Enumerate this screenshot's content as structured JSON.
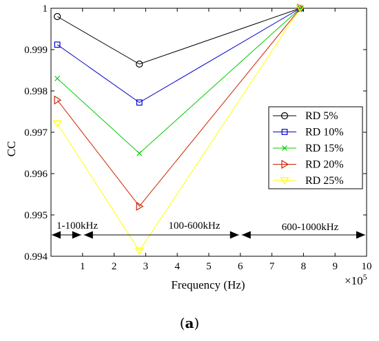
{
  "chart_data": {
    "type": "line",
    "xlabel": "Frequency (Hz)",
    "ylabel": "CC",
    "x_multiplier_label": "×10",
    "x_multiplier_exp": "5",
    "xlim": [
      0,
      1000000
    ],
    "ylim": [
      0.994,
      1
    ],
    "x_ticks": [
      1,
      2,
      3,
      4,
      5,
      6,
      7,
      8,
      9,
      10
    ],
    "x_tick_scale": 100000,
    "y_ticks": [
      "0.994",
      "0.995",
      "0.996",
      "0.997",
      "0.998",
      "0.999",
      "1"
    ],
    "grid": false,
    "legend_position": "right",
    "x": [
      20000,
      280000,
      790000
    ],
    "series": [
      {
        "name": "RD  5%",
        "color": "#000000",
        "marker": "circle",
        "values": [
          0.9998,
          0.99865,
          1.0
        ]
      },
      {
        "name": "RD  10%",
        "color": "#0000cc",
        "marker": "square",
        "values": [
          0.99912,
          0.99772,
          1.0
        ]
      },
      {
        "name": "RD  15%",
        "color": "#00cc00",
        "marker": "x",
        "values": [
          0.9983,
          0.99649,
          1.0
        ]
      },
      {
        "name": "RD  20%",
        "color": "#cc2200",
        "marker": "triangle-right",
        "values": [
          0.99778,
          0.99521,
          1.0
        ]
      },
      {
        "name": "RD  25%",
        "color": "#ffff00",
        "marker": "triangle-down",
        "values": [
          0.99721,
          0.99413,
          1.0
        ]
      }
    ],
    "regions": [
      {
        "label": "1-100kHz",
        "from": 0,
        "to": 100000
      },
      {
        "label": "100-600kHz",
        "from": 100000,
        "to": 600000
      },
      {
        "label": "600-1000kHz",
        "from": 600000,
        "to": 1000000
      }
    ]
  },
  "caption": "(a)",
  "caption_letter": "a"
}
